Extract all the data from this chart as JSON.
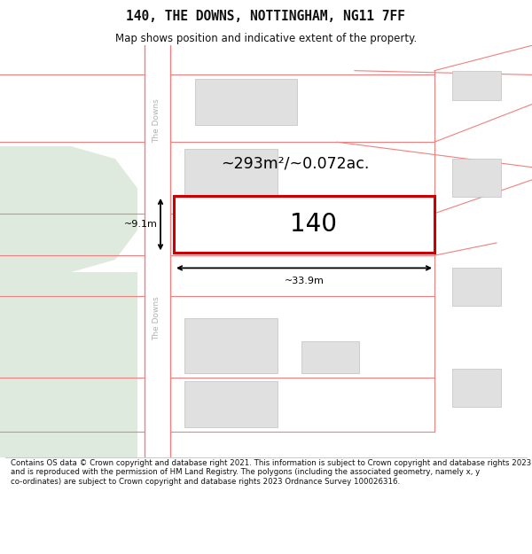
{
  "title": "140, THE DOWNS, NOTTINGHAM, NG11 7FF",
  "subtitle": "Map shows position and indicative extent of the property.",
  "footer": "Contains OS data © Crown copyright and database right 2021. This information is subject to Crown copyright and database rights 2023 and is reproduced with the permission of HM Land Registry. The polygons (including the associated geometry, namely x, y co-ordinates) are subject to Crown copyright and database rights 2023 Ordnance Survey 100026316.",
  "bg_color": "#ffffff",
  "road_border_color": "#f08080",
  "building_fill": "#e0e0e0",
  "building_edge": "#c0c0c0",
  "highlight_fill": "#ffffff",
  "highlight_edge": "#cc0000",
  "green_fill": "#deeade",
  "text_color": "#000000",
  "road_label_color": "#b0b0b0",
  "area_text": "~293m²/~0.072ac.",
  "label_text": "140",
  "width_label": "~33.9m",
  "height_label": "~9.1m"
}
